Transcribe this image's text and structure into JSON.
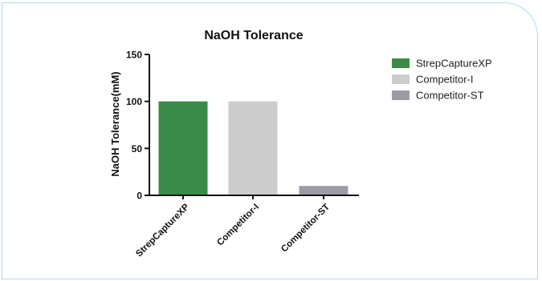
{
  "chart_data": {
    "type": "bar",
    "title": "NaOH Tolerance",
    "xlabel": "",
    "ylabel": "NaOH Tolerance(mM)",
    "categories": [
      "StrepCaptureXP",
      "Competitor-I",
      "Competitor-ST"
    ],
    "values": [
      100,
      100,
      10
    ],
    "ylim": [
      0,
      150
    ],
    "yticks": [
      "0",
      "50",
      "100",
      "150"
    ],
    "colors": [
      "#3a8a48",
      "#cdcdcd",
      "#9d9ca4"
    ],
    "legend": {
      "placement": "right",
      "entries": [
        "StrepCaptureXP",
        "Competitor-I",
        "Competitor-ST"
      ]
    },
    "grid": false
  }
}
